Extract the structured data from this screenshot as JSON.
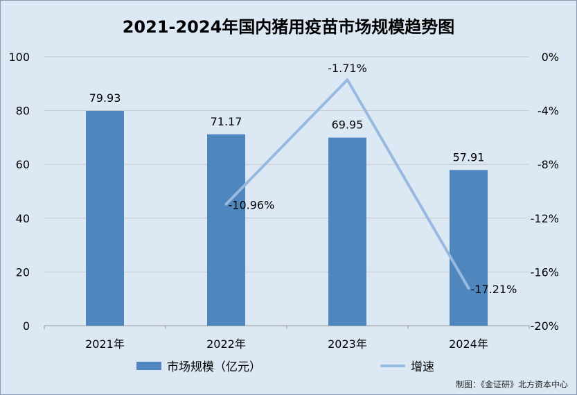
{
  "chart_data": {
    "type": "bar",
    "title": "2021-2024年国内猪用疫苗市场规模趋势图",
    "categories": [
      "2021年",
      "2022年",
      "2023年",
      "2024年"
    ],
    "series": [
      {
        "name": "市场规模（亿元）",
        "type": "bar",
        "axis": "left",
        "values": [
          79.93,
          71.17,
          69.95,
          57.91
        ],
        "labels": [
          "79.93",
          "71.17",
          "69.95",
          "57.91"
        ],
        "color": "#4e86bd"
      },
      {
        "name": "增速",
        "type": "line",
        "axis": "right",
        "values": [
          null,
          -10.96,
          -1.71,
          -17.21
        ],
        "labels": [
          "",
          "-10.96%",
          "-1.71%",
          "-17.21%"
        ],
        "color": "#98b9e0"
      }
    ],
    "y_left": {
      "min": 0,
      "max": 100,
      "ticks": [
        0,
        20,
        40,
        60,
        80,
        100
      ],
      "tick_labels": [
        "0",
        "20",
        "40",
        "60",
        "80",
        "100"
      ]
    },
    "y_right": {
      "min": -20,
      "max": 0,
      "ticks": [
        0,
        -4,
        -8,
        -12,
        -16,
        -20
      ],
      "tick_labels": [
        "0%",
        "-4%",
        "-8%",
        "-12%",
        "-16%",
        "-20%"
      ]
    },
    "grid": true,
    "legend_position": "bottom"
  },
  "credit": "制图：《金证研》北方资本中心",
  "colors": {
    "background": "#dde8f5",
    "grid": "#c9c9c9",
    "axis": "#9a9a9a"
  }
}
